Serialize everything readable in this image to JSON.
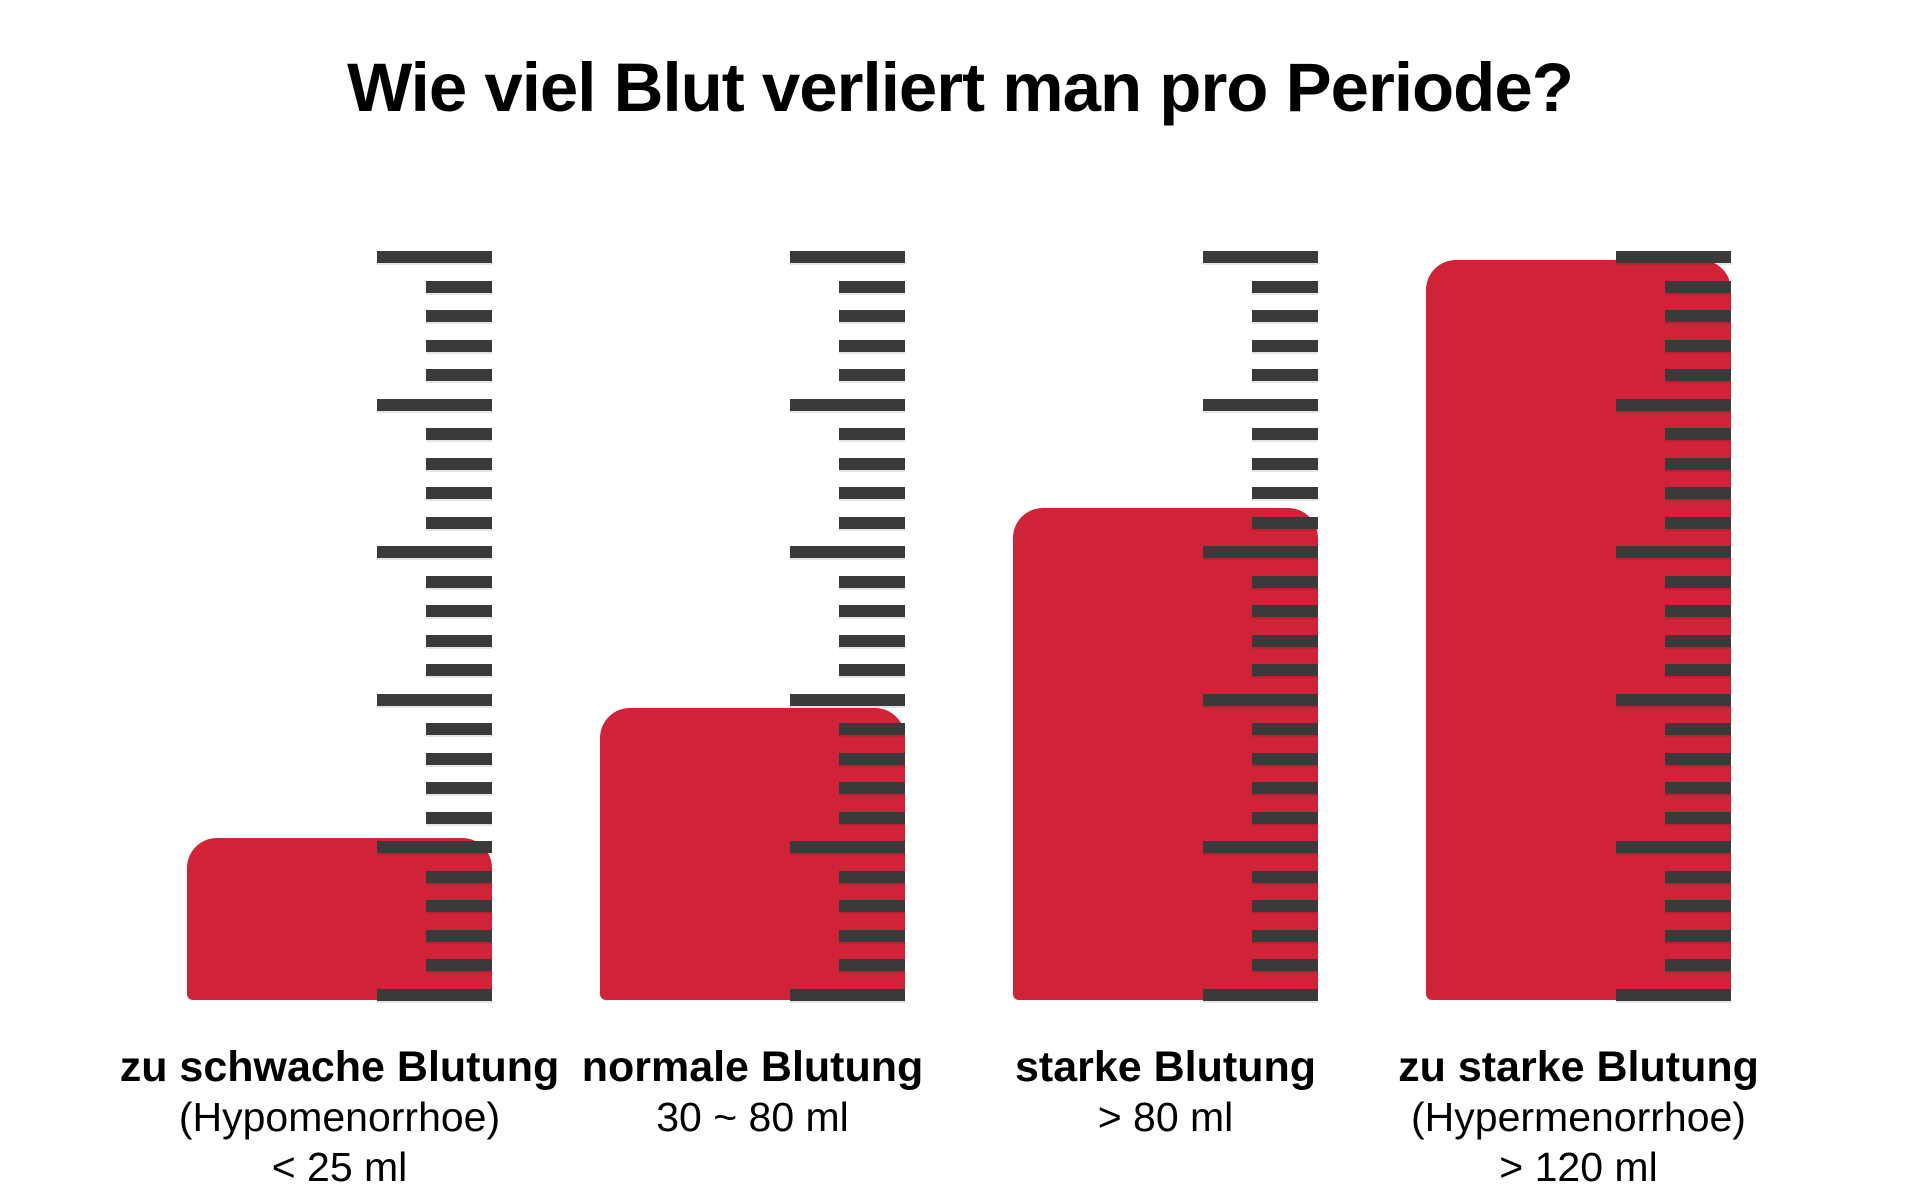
{
  "title": "Wie viel Blut verliert man pro Periode?",
  "colors": {
    "bar_red": "#D02338",
    "ruler_dark": "#3A3A3A",
    "text": "#000000",
    "background": "#FFFFFF"
  },
  "chart_data": {
    "type": "bar",
    "title": "Wie viel Blut verliert man pro Periode?",
    "xlabel": "",
    "ylabel": "",
    "legend": false,
    "grid": false,
    "layout_hint": "4 red bars each overlaid with an identical vertical ruler scale (26 tick lines, long tick every 5th), bars bottom-aligned to ruler bottom",
    "categories": [
      {
        "label": "zu schwache Blutung",
        "sublabel": "(Hypomenorrhoe)",
        "amount": "< 25 ml",
        "fill_percent": 21.6
      },
      {
        "label": "normale Blutung",
        "sublabel": "",
        "amount": "30 ~ 80 ml",
        "fill_percent": 39.0
      },
      {
        "label": "starke Blutung",
        "sublabel": "",
        "amount": "> 80 ml",
        "fill_percent": 65.6
      },
      {
        "label": "zu starke Blutung",
        "sublabel": "(Hypermenorrhoe)",
        "amount": "> 120 ml",
        "fill_percent": 98.7
      }
    ]
  }
}
